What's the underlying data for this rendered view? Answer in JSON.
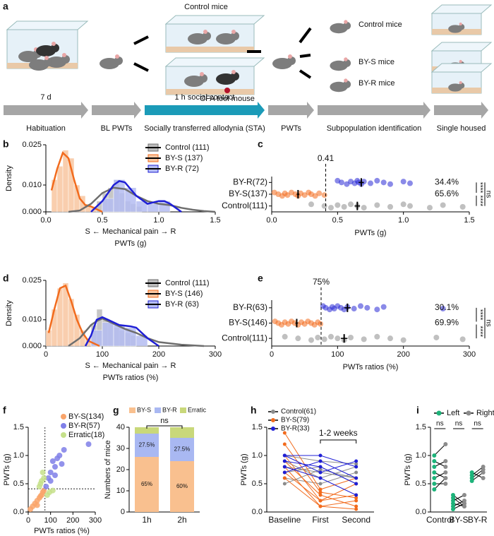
{
  "schematic": {
    "panel": "a",
    "top_label": "Control mice",
    "tool_label": "CFA tool mouse",
    "outcomes": [
      {
        "label": "Control mice",
        "color": "#666666"
      },
      {
        "label": "BY-S mice",
        "color": "#f26b1d"
      },
      {
        "label": "BY-R mice",
        "color": "#2a2ad6"
      }
    ],
    "timeline": [
      {
        "top": "7 d",
        "bottom": "Habituation",
        "color": "#a6a6a6"
      },
      {
        "bottom": "BL PWTs",
        "color": "#a6a6a6"
      },
      {
        "top": "1 h social contact",
        "bottom": "Socially transferred allodynia (STA)",
        "color": "#1b9bb8"
      },
      {
        "bottom": "PWTs",
        "color": "#a6a6a6"
      },
      {
        "bottom": "Subpopulation identification",
        "color": "#a6a6a6"
      },
      {
        "bottom": "Single housed",
        "color": "#a6a6a6"
      }
    ]
  },
  "chart_data": [
    {
      "type": "density_histogram",
      "panel": "b",
      "ylabel": "Density",
      "xlabel_top": "S ← Mechanical pain → R",
      "xlabel": "PWTs (g)",
      "xlim": [
        0,
        1.5
      ],
      "xticks": [
        {
          "value": 0,
          "label": "0.0"
        },
        {
          "value": 0.5,
          "label": "0.5"
        },
        {
          "value": 1,
          "label": "1.0"
        },
        {
          "value": 1.5,
          "label": "1.5"
        }
      ],
      "ylim": [
        0,
        0.025
      ],
      "yticks": [
        {
          "value": 0,
          "label": "0.000"
        },
        {
          "value": 0.01,
          "label": "0.010"
        },
        {
          "value": 0.025,
          "label": "0.025"
        }
      ],
      "series": [
        {
          "name": "Control (111)",
          "color": "#6e6e6e",
          "hist_color": "#bdbdbd",
          "x": [
            0.2,
            0.3,
            0.4,
            0.5,
            0.6,
            0.7,
            0.8,
            0.9,
            1.0,
            1.1,
            1.2,
            1.3,
            1.4,
            1.5
          ],
          "values": [
            0,
            0.0005,
            0.003,
            0.007,
            0.009,
            0.0085,
            0.006,
            0.004,
            0.003,
            0.0025,
            0.0015,
            0.0008,
            0.0003,
            0
          ],
          "hist_bins": [
            0.45,
            0.5,
            0.55,
            0.6,
            0.65,
            0.7,
            0.75,
            0.8,
            0.85
          ],
          "hist_values": [
            0.004,
            0.007,
            0.009,
            0.012,
            0.007,
            0.004,
            0.003,
            0.002
          ]
        },
        {
          "name": "BY-S (137)",
          "color": "#f26b1d",
          "hist_color": "#f9c6a0",
          "x": [
            0.05,
            0.1,
            0.15,
            0.2,
            0.25,
            0.3,
            0.35,
            0.4,
            0.45,
            0.5
          ],
          "values": [
            0.008,
            0.016,
            0.022,
            0.02,
            0.012,
            0.005,
            0.0025,
            0.002,
            0.001,
            0
          ],
          "hist_bins": [
            0.05,
            0.1,
            0.15,
            0.2,
            0.25,
            0.3,
            0.35,
            0.4,
            0.45
          ],
          "hist_values": [
            0.012,
            0.017,
            0.023,
            0.02,
            0.01,
            0.006,
            0.003,
            0.002
          ]
        },
        {
          "name": "BY-R (72)",
          "color": "#1f1fd6",
          "hist_color": "#b5bdf2",
          "x": [
            0.4,
            0.5,
            0.6,
            0.65,
            0.7,
            0.8,
            0.9,
            1.0,
            1.05,
            1.1,
            1.2
          ],
          "values": [
            0,
            0.004,
            0.01,
            0.0115,
            0.011,
            0.006,
            0.003,
            0.004,
            0.004,
            0.003,
            0
          ],
          "hist_bins": [
            0.5,
            0.6,
            0.7,
            0.8,
            0.9,
            1.0,
            1.1
          ],
          "hist_values": [
            0.005,
            0.012,
            0.009,
            0.004,
            0.003,
            0.004
          ]
        }
      ]
    },
    {
      "type": "dot_strip",
      "panel": "c",
      "xlabel": "PWTs (g)",
      "xlim": [
        0,
        1.5
      ],
      "xticks": [
        {
          "value": 0,
          "label": "0.0"
        },
        {
          "value": 0.5,
          "label": "0.5"
        },
        {
          "value": 1,
          "label": "1.0"
        },
        {
          "value": 1.5,
          "label": "1.5"
        }
      ],
      "threshold": 0.41,
      "threshold_label": "0.41",
      "categories": [
        "BY-R(72)",
        "BY-S(137)",
        "Control(111)"
      ],
      "colors": [
        "#2a2ad6",
        "#f26b1d",
        "#8c8c8c"
      ],
      "points": [
        [
          0.5,
          0.53,
          0.57,
          0.6,
          0.63,
          0.65,
          0.66,
          0.68,
          0.7,
          0.75,
          0.8,
          0.85,
          0.9,
          1.0,
          1.05
        ],
        [
          0.02,
          0.05,
          0.08,
          0.1,
          0.12,
          0.15,
          0.18,
          0.2,
          0.22,
          0.25,
          0.28,
          0.3,
          0.33,
          0.36,
          0.4
        ],
        [
          0.3,
          0.4,
          0.45,
          0.5,
          0.55,
          0.6,
          0.65,
          0.7,
          0.8,
          0.9,
          1.0,
          1.05,
          1.2,
          1.3,
          1.45
        ]
      ],
      "means": [
        0.68,
        0.2,
        0.65
      ],
      "errors": [
        0.02,
        0.01,
        0.02
      ],
      "percentages": [
        "34.4%",
        "65.6%"
      ],
      "significance": [
        "****",
        "****",
        "ns"
      ]
    },
    {
      "type": "density_histogram",
      "panel": "d",
      "ylabel": "Density",
      "xlabel_top": "S ← Mechanical pain → R",
      "xlabel": "PWTs ratios (%)",
      "xlim": [
        0,
        300
      ],
      "xticks": [
        0,
        100,
        200,
        300
      ],
      "ylim": [
        0,
        0.025
      ],
      "yticks": [
        {
          "value": 0,
          "label": "0.000"
        },
        {
          "value": 0.01,
          "label": "0.010"
        },
        {
          "value": 0.025,
          "label": "0.025"
        }
      ],
      "series": [
        {
          "name": "Control (111)",
          "color": "#6e6e6e",
          "hist_color": "#bdbdbd",
          "x": [
            40,
            60,
            80,
            90,
            100,
            120,
            140,
            160,
            180,
            200,
            240,
            280
          ],
          "values": [
            0,
            0.003,
            0.008,
            0.0095,
            0.0105,
            0.0085,
            0.0065,
            0.005,
            0.003,
            0.0015,
            0.0005,
            0
          ],
          "hist_bins": [
            80,
            90,
            100,
            110,
            120,
            130,
            140,
            150,
            160
          ],
          "hist_values": [
            0.008,
            0.014,
            0.01,
            0.009,
            0.007,
            0.006,
            0.005,
            0.004
          ]
        },
        {
          "name": "BY-S (146)",
          "color": "#f26b1d",
          "hist_color": "#f9c6a0",
          "x": [
            5,
            15,
            25,
            35,
            45,
            55,
            65,
            75,
            85,
            95
          ],
          "values": [
            0.005,
            0.014,
            0.022,
            0.023,
            0.017,
            0.01,
            0.005,
            0.002,
            0.001,
            0
          ],
          "hist_bins": [
            0,
            10,
            20,
            30,
            40,
            50,
            60,
            70,
            80
          ],
          "hist_values": [
            0.006,
            0.014,
            0.022,
            0.024,
            0.018,
            0.012,
            0.006,
            0.003
          ]
        },
        {
          "name": "BY-R (63)",
          "color": "#1f1fd6",
          "hist_color": "#b5bdf2",
          "x": [
            70,
            80,
            90,
            100,
            110,
            130,
            150,
            160,
            180,
            200
          ],
          "values": [
            0,
            0.004,
            0.01,
            0.011,
            0.01,
            0.008,
            0.0075,
            0.007,
            0.003,
            0
          ],
          "hist_bins": [
            80,
            100,
            120,
            140,
            160,
            180
          ],
          "hist_values": [
            0.006,
            0.009,
            0.008,
            0.007,
            0.004
          ]
        }
      ]
    },
    {
      "type": "dot_strip",
      "panel": "e",
      "xlabel": "PWTs ratios (%)",
      "xlim": [
        0,
        300
      ],
      "xticks": [
        0,
        100,
        200,
        300
      ],
      "threshold": 75,
      "threshold_label": "75%",
      "categories": [
        "BY-R(63)",
        "BY-S(146)",
        "Control(111)"
      ],
      "colors": [
        "#2a2ad6",
        "#f26b1d",
        "#8c8c8c"
      ],
      "points": [
        [
          78,
          82,
          88,
          92,
          95,
          100,
          105,
          110,
          115,
          125,
          135,
          145,
          160,
          170,
          260
        ],
        [
          5,
          10,
          15,
          20,
          25,
          30,
          35,
          40,
          45,
          50,
          55,
          60,
          65,
          70,
          74
        ],
        [
          20,
          40,
          60,
          70,
          80,
          90,
          100,
          110,
          120,
          140,
          160,
          180,
          200,
          250,
          290
        ]
      ],
      "means": [
        115,
        38,
        110
      ],
      "errors": [
        5,
        2,
        5
      ],
      "percentages": [
        "30.1%",
        "69.9%"
      ],
      "significance": [
        "****",
        "****",
        "ns"
      ]
    },
    {
      "type": "scatter",
      "panel": "f",
      "xlabel": "PWTs ratios (%)",
      "ylabel": "PWTs (g)",
      "xlim": [
        0,
        300
      ],
      "xticks": [
        0,
        100,
        200,
        300
      ],
      "ylim": [
        0,
        1.5
      ],
      "yticks": [
        {
          "value": 0,
          "label": "0.0"
        },
        {
          "value": 0.5,
          "label": "0.5"
        },
        {
          "value": 1,
          "label": "1.0"
        },
        {
          "value": 1.5,
          "label": "1.5"
        }
      ],
      "xline": 75,
      "yline": 0.41,
      "series": [
        {
          "name": "BY-S(134)",
          "color": "#f9a46a",
          "x": [
            10,
            20,
            30,
            40,
            50,
            60,
            65,
            70,
            40,
            55
          ],
          "values": [
            0.05,
            0.1,
            0.15,
            0.2,
            0.25,
            0.3,
            0.35,
            0.38,
            0.12,
            0.28
          ]
        },
        {
          "name": "BY-R(57)",
          "color": "#7f7fe8",
          "x": [
            80,
            90,
            100,
            110,
            120,
            130,
            140,
            150,
            160,
            270,
            100,
            120
          ],
          "values": [
            0.45,
            0.6,
            0.7,
            0.9,
            0.8,
            0.95,
            1.0,
            0.85,
            1.1,
            1.2,
            0.55,
            0.65
          ]
        },
        {
          "name": "Erratic(18)",
          "color": "#c5e08a",
          "x": [
            50,
            60,
            70,
            55,
            85,
            95,
            110,
            65
          ],
          "values": [
            0.45,
            0.55,
            0.6,
            0.5,
            0.3,
            0.35,
            0.38,
            0.7
          ]
        }
      ]
    },
    {
      "type": "stacked_bar",
      "panel": "g",
      "ylabel": "Numbers of mice",
      "ylim": [
        0,
        40
      ],
      "yticks": [
        0,
        10,
        20,
        30,
        40
      ],
      "categories": [
        "1h",
        "2h"
      ],
      "significance": "ns",
      "series": [
        {
          "name": "BY-S",
          "color": "#f9c08f",
          "values": [
            26,
            24
          ],
          "percent_labels": [
            "65%",
            "60%"
          ]
        },
        {
          "name": "BY-R",
          "color": "#a9b8f2",
          "values": [
            11,
            11
          ],
          "percent_labels": [
            "27.5%",
            "27.5%"
          ]
        },
        {
          "name": "Erratic",
          "color": "#c9d87a",
          "values": [
            3,
            5
          ]
        }
      ]
    },
    {
      "type": "paired_lines",
      "panel": "h",
      "ylabel": "PWTs (g)",
      "ylim": [
        0,
        1.5
      ],
      "yticks": [
        {
          "value": 0,
          "label": "0.0"
        },
        {
          "value": 0.5,
          "label": "0.5"
        },
        {
          "value": 1,
          "label": "1.0"
        },
        {
          "value": 1.5,
          "label": "1.5"
        }
      ],
      "categories": [
        "Baseline",
        "First",
        "Second"
      ],
      "bracket_label": "1-2 weeks",
      "series": [
        {
          "name": "Control(61)",
          "color": "#8c8c8c",
          "subjects": [
            [
              0.8,
              0.7,
              0.6
            ],
            [
              1.0,
              0.9,
              0.85
            ],
            [
              0.6,
              0.5,
              0.7
            ],
            [
              0.5,
              0.75,
              0.6
            ],
            [
              0.9,
              0.6,
              0.8
            ],
            [
              0.7,
              0.8,
              0.5
            ]
          ]
        },
        {
          "name": "BY-S(79)",
          "color": "#f26b1d",
          "subjects": [
            [
              1.4,
              0.4,
              0.6
            ],
            [
              1.0,
              0.2,
              0.3
            ],
            [
              0.8,
              0.1,
              0.2
            ],
            [
              0.9,
              0.3,
              0.1
            ],
            [
              0.7,
              0.2,
              0.5
            ],
            [
              1.2,
              0.35,
              0.25
            ],
            [
              0.6,
              0.1,
              0.05
            ]
          ]
        },
        {
          "name": "BY-R(33)",
          "color": "#1f1fd6",
          "subjects": [
            [
              0.9,
              0.8,
              0.5
            ],
            [
              1.0,
              0.7,
              0.9
            ],
            [
              0.7,
              0.9,
              0.6
            ],
            [
              0.8,
              0.6,
              0.3
            ],
            [
              1.0,
              1.0,
              0.8
            ]
          ]
        }
      ]
    },
    {
      "type": "paired_dots",
      "panel": "i",
      "ylabel": "PWTs (g)",
      "ylim": [
        0,
        1.5
      ],
      "yticks": [
        {
          "value": 0,
          "label": "0.0"
        },
        {
          "value": 0.5,
          "label": "0.5"
        },
        {
          "value": 1,
          "label": "1.0"
        },
        {
          "value": 1.5,
          "label": "1.5"
        }
      ],
      "categories": [
        "Control",
        "BY-S",
        "BY-R"
      ],
      "significance": [
        "ns",
        "ns",
        "ns"
      ],
      "series": [
        {
          "name": "Left",
          "color": "#1db37a",
          "values": [
            [
              1.0,
              0.9,
              0.8,
              0.7,
              0.6,
              0.5,
              0.4
            ],
            [
              0.3,
              0.2,
              0.15,
              0.1,
              0.25,
              0.05
            ],
            [
              0.6,
              0.7,
              0.55,
              0.65
            ]
          ]
        },
        {
          "name": "Right",
          "color": "#8c8c8c",
          "values": [
            [
              1.2,
              0.8,
              0.9,
              0.6,
              0.7,
              0.5,
              0.6
            ],
            [
              0.15,
              0.3,
              0.1,
              0.2,
              0.1,
              0.15
            ],
            [
              0.75,
              0.6,
              0.7,
              0.8
            ]
          ]
        }
      ]
    }
  ]
}
